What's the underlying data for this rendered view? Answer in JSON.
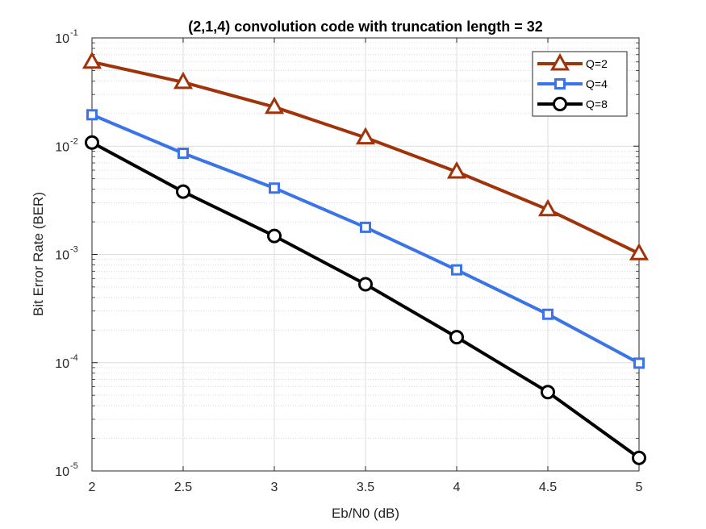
{
  "chart_data": {
    "type": "line",
    "title": "(2,1,4) convolution code with truncation length = 32",
    "xlabel": "Eb/N0 (dB)",
    "ylabel": "Bit Error Rate (BER)",
    "yscale": "log",
    "xlim": [
      2,
      5
    ],
    "ylim": [
      1e-05,
      0.1
    ],
    "grid": true,
    "minor_grid": true,
    "legend_position": "top-right",
    "x": [
      2,
      2.5,
      3,
      3.5,
      4,
      4.5,
      5
    ],
    "x_tick_labels": [
      "2",
      "2.5",
      "3",
      "3.5",
      "4",
      "4.5",
      "5"
    ],
    "y_ticks": [
      {
        "base": "10",
        "exp": "-5",
        "value": 1e-05
      },
      {
        "base": "10",
        "exp": "-4",
        "value": 0.0001
      },
      {
        "base": "10",
        "exp": "-3",
        "value": 0.001
      },
      {
        "base": "10",
        "exp": "-2",
        "value": 0.01
      },
      {
        "base": "10",
        "exp": "-1",
        "value": 0.1
      }
    ],
    "series": [
      {
        "name": "Q=2",
        "color": "#a0330a",
        "marker": "triangle",
        "values": [
          0.06,
          0.039,
          0.023,
          0.012,
          0.0058,
          0.0026,
          0.00102
        ]
      },
      {
        "name": "Q=4",
        "color": "#3b73e8",
        "marker": "square",
        "values": [
          0.0195,
          0.0086,
          0.0041,
          0.00178,
          0.00072,
          0.00028,
          9.9e-05
        ]
      },
      {
        "name": "Q=8",
        "color": "#000000",
        "marker": "circle",
        "values": [
          0.0108,
          0.0038,
          0.00148,
          0.00053,
          0.000172,
          5.35e-05,
          1.32e-05
        ]
      }
    ]
  }
}
